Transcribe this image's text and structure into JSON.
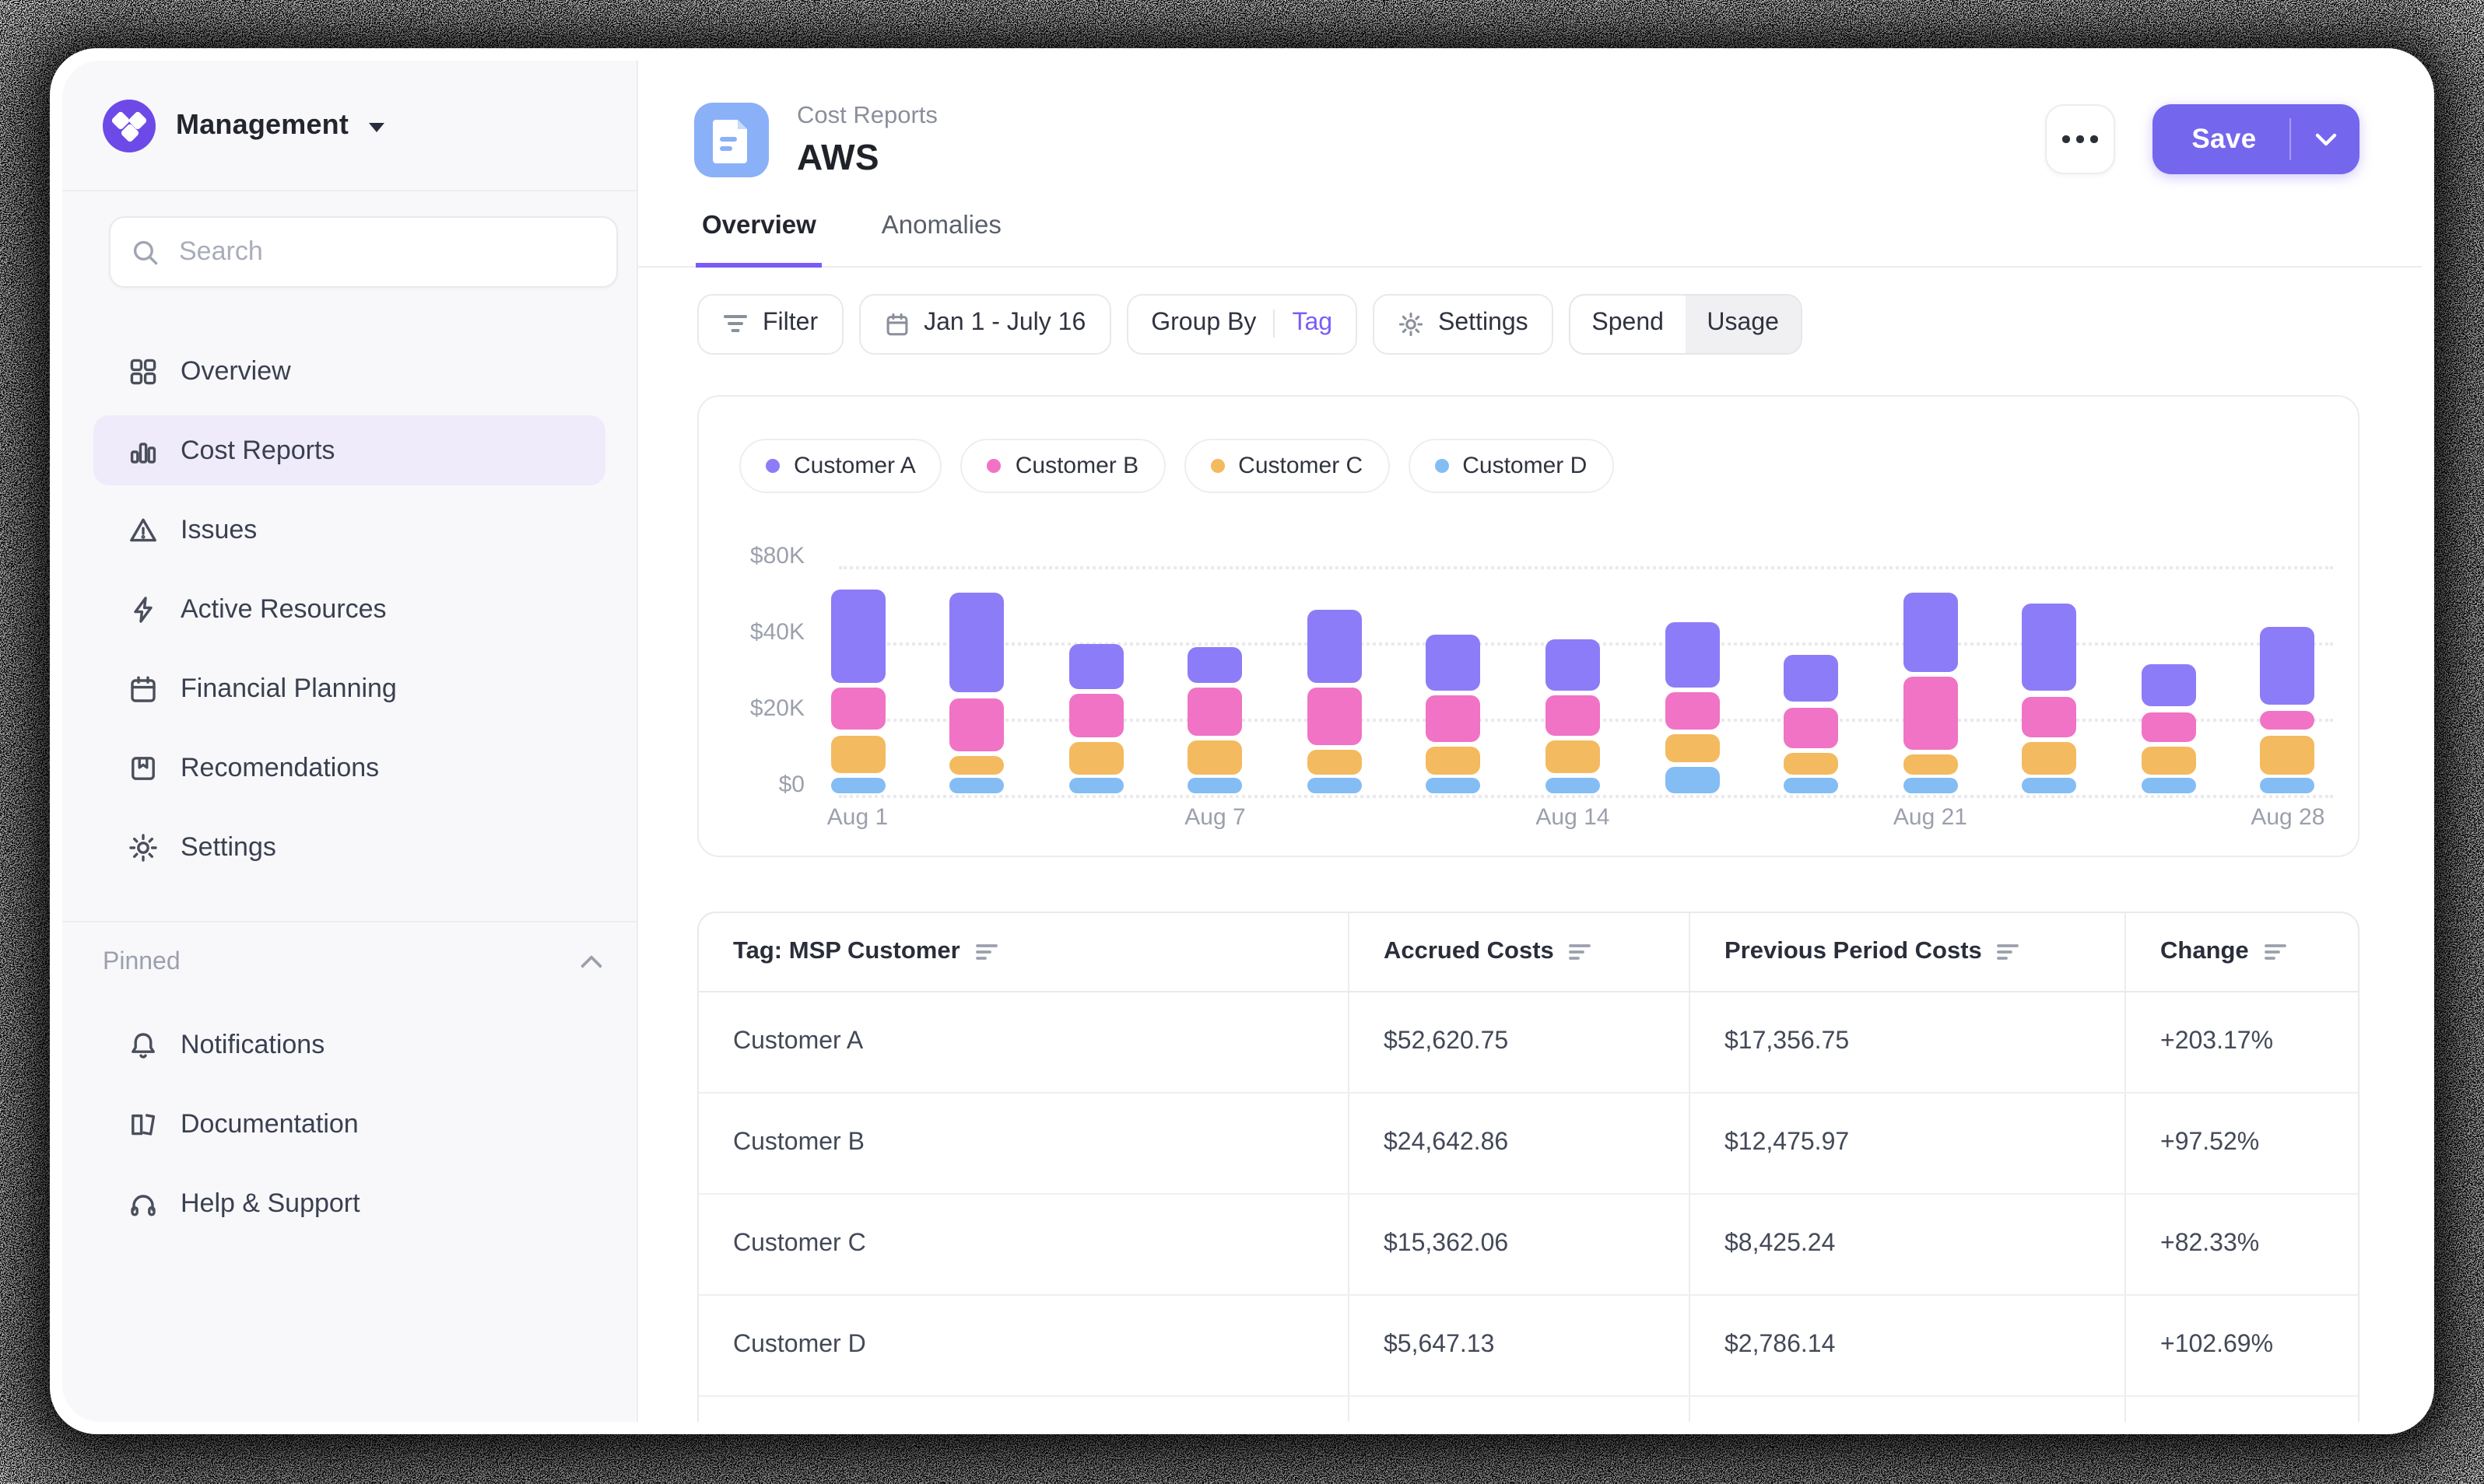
{
  "window": {
    "brand": "Management"
  },
  "sidebar": {
    "search_placeholder": "Search",
    "items": [
      {
        "label": "Overview",
        "icon": "grid-icon",
        "active": false
      },
      {
        "label": "Cost Reports",
        "icon": "bar-chart-icon",
        "active": true
      },
      {
        "label": "Issues",
        "icon": "warning-icon",
        "active": false
      },
      {
        "label": "Active Resources",
        "icon": "bolt-icon",
        "active": false
      },
      {
        "label": "Financial Planning",
        "icon": "calendar-icon",
        "active": false
      },
      {
        "label": "Recomendations",
        "icon": "bookmark-icon",
        "active": false
      },
      {
        "label": "Settings",
        "icon": "gear-icon",
        "active": false
      }
    ],
    "pinned": {
      "label": "Pinned",
      "items": [
        {
          "label": "Notifications",
          "icon": "bell-icon"
        },
        {
          "label": "Documentation",
          "icon": "book-icon"
        },
        {
          "label": "Help & Support",
          "icon": "headphones-icon"
        }
      ]
    }
  },
  "header": {
    "breadcrumb": "Cost Reports",
    "title": "AWS",
    "tabs": [
      {
        "label": "Overview",
        "active": true
      },
      {
        "label": "Anomalies",
        "active": false
      }
    ],
    "save_label": "Save"
  },
  "toolbar": {
    "filter_label": "Filter",
    "date_range": "Jan 1 - July 16",
    "group_by_label": "Group By",
    "group_by_value": "Tag",
    "settings_label": "Settings",
    "view_toggle": {
      "options": [
        "Spend",
        "Usage"
      ],
      "selected": "Usage"
    }
  },
  "chart_data": {
    "type": "stacked_bar",
    "unit": "USD thousands",
    "y_ticks": [
      0,
      20,
      40,
      80
    ],
    "y_tick_labels": [
      "$0",
      "$20K",
      "$40K",
      "$80K"
    ],
    "y_axis_note": "non-linear axis: ticks evenly spaced",
    "x_tick_labels": [
      "Aug 1",
      "Aug 7",
      "Aug 14",
      "Aug 21",
      "Aug 28"
    ],
    "x_tick_bar_index": [
      0,
      3,
      6,
      9,
      12
    ],
    "bar_count": 13,
    "grid": "dotted horizontal",
    "legend_position": "top-left",
    "series_order_bottom_to_top": [
      "Customer D",
      "Customer C",
      "Customer B",
      "Customer A"
    ],
    "series": [
      {
        "name": "Customer A",
        "color": "#8d7cf7",
        "segments": [
          [
            29.3,
            67.6
          ],
          [
            26.7,
            65.9
          ],
          [
            27.5,
            39.4
          ],
          [
            29.2,
            38.5
          ],
          [
            29.3,
            56.8
          ],
          [
            27.1,
            43.7
          ],
          [
            27.3,
            41.0
          ],
          [
            27.8,
            50.1
          ],
          [
            24.4,
            36.5
          ],
          [
            31.9,
            65.9
          ],
          [
            27.0,
            59.6
          ],
          [
            22.9,
            33.9
          ],
          [
            23.3,
            47.9
          ]
        ]
      },
      {
        "name": "Customer B",
        "color": "#f173c5",
        "segments": [
          [
            16.8,
            27.9
          ],
          [
            11.4,
            25.3
          ],
          [
            14.9,
            26.2
          ],
          [
            15.2,
            27.8
          ],
          [
            13.0,
            27.9
          ],
          [
            13.6,
            25.9
          ],
          [
            15.4,
            26.0
          ],
          [
            17.1,
            26.6
          ],
          [
            11.9,
            22.7
          ],
          [
            11.6,
            30.8
          ],
          [
            14.9,
            25.6
          ],
          [
            13.8,
            21.6
          ],
          [
            16.8,
            21.8
          ]
        ]
      },
      {
        "name": "Customer C",
        "color": "#f3ba60",
        "segments": [
          [
            5.5,
            15.4
          ],
          [
            5.3,
            10.1
          ],
          [
            5.3,
            13.6
          ],
          [
            5.3,
            13.9
          ],
          [
            5.3,
            11.8
          ],
          [
            5.3,
            12.3
          ],
          [
            5.5,
            14.1
          ],
          [
            8.3,
            15.7
          ],
          [
            5.3,
            10.7
          ],
          [
            5.3,
            10.3
          ],
          [
            5.3,
            13.6
          ],
          [
            5.3,
            12.5
          ],
          [
            5.3,
            15.4
          ]
        ]
      },
      {
        "name": "Customer D",
        "color": "#84bdf4",
        "segments": [
          [
            0,
            4.4
          ],
          [
            0,
            4.4
          ],
          [
            0,
            4.4
          ],
          [
            0,
            4.4
          ],
          [
            0,
            4.4
          ],
          [
            0,
            4.4
          ],
          [
            0,
            4.4
          ],
          [
            0,
            7.2
          ],
          [
            0,
            4.4
          ],
          [
            0,
            4.4
          ],
          [
            0,
            4.4
          ],
          [
            0,
            4.4
          ],
          [
            0,
            4.4
          ]
        ]
      }
    ]
  },
  "table": {
    "columns": [
      {
        "label": "Tag: MSP Customer",
        "sortable": true
      },
      {
        "label": "Accrued Costs",
        "sortable": true
      },
      {
        "label": "Previous Period Costs",
        "sortable": true
      },
      {
        "label": "Change",
        "sortable": true
      }
    ],
    "rows": [
      [
        "Customer A",
        "$52,620.75",
        "$17,356.75",
        "+203.17%"
      ],
      [
        "Customer B",
        "$24,642.86",
        "$12,475.97",
        "+97.52%"
      ],
      [
        "Customer C",
        "$15,362.06",
        "$8,425.24",
        "+82.33%"
      ],
      [
        "Customer D",
        "$5,647.13",
        "$2,786.14",
        "+102.69%"
      ],
      [
        "",
        "",
        "",
        ""
      ]
    ]
  },
  "colors": {
    "accent": "#7b5cf6",
    "save_button": "#7566ee",
    "logo": "#6d4ae8",
    "doc_icon_bg": "#8ab0f8",
    "active_nav_bg": "#efebfb",
    "customer_a": "#8d7cf7",
    "customer_b": "#f173c5",
    "customer_c": "#f3ba60",
    "customer_d": "#84bdf4"
  }
}
